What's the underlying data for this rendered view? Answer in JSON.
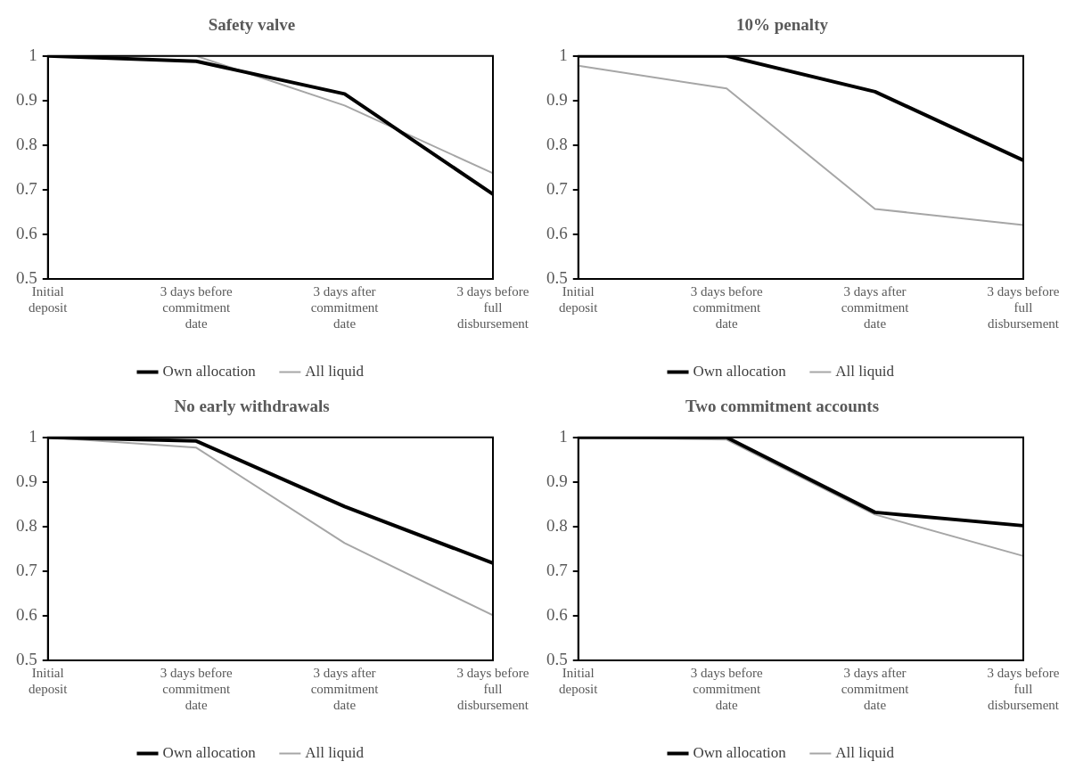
{
  "chart_data": [
    {
      "type": "line",
      "title": "Safety valve",
      "categories": [
        "Initial deposit",
        "3 days before commitment date",
        "3 days after commitment date",
        "3 days before full disbursement"
      ],
      "ylim": [
        0.5,
        1
      ],
      "yticks": [
        0.5,
        0.6,
        0.7,
        0.8,
        0.9,
        1
      ],
      "legend": "bottom",
      "marker": "none",
      "series": [
        {
          "name": "Own allocation",
          "color": "#000000",
          "values": [
            1,
            0.988,
            0.915,
            0.69
          ]
        },
        {
          "name": "All liquid",
          "color": "#a6a6a6",
          "values": [
            1,
            1,
            0.889,
            0.737
          ]
        }
      ]
    },
    {
      "type": "line",
      "title": "10% penalty",
      "categories": [
        "Initial deposit",
        "3 days before commitment date",
        "3 days after commitment date",
        "3 days before full disbursement"
      ],
      "ylim": [
        0.5,
        1
      ],
      "yticks": [
        0.5,
        0.6,
        0.7,
        0.8,
        0.9,
        1
      ],
      "legend": "bottom",
      "marker": "none",
      "series": [
        {
          "name": "Own allocation",
          "color": "#000000",
          "values": [
            1,
            1,
            0.92,
            0.766
          ]
        },
        {
          "name": "All liquid",
          "color": "#a6a6a6",
          "values": [
            0.978,
            0.927,
            0.657,
            0.621
          ]
        }
      ]
    },
    {
      "type": "line",
      "title": "No early withdrawals",
      "categories": [
        "Initial deposit",
        "3 days before commitment date",
        "3 days after commitment date",
        "3 days before full disbursement"
      ],
      "ylim": [
        0.5,
        1
      ],
      "yticks": [
        0.5,
        0.6,
        0.7,
        0.8,
        0.9,
        1
      ],
      "legend": "bottom",
      "marker": "none",
      "series": [
        {
          "name": "Own allocation",
          "color": "#000000",
          "values": [
            1,
            0.992,
            0.845,
            0.718
          ]
        },
        {
          "name": "All liquid",
          "color": "#a6a6a6",
          "values": [
            1,
            0.977,
            0.763,
            0.601
          ]
        }
      ]
    },
    {
      "type": "line",
      "title": "Two commitment accounts",
      "categories": [
        "Initial deposit",
        "3 days before commitment date",
        "3 days after commitment date",
        "3 days before full disbursement"
      ],
      "ylim": [
        0.5,
        1
      ],
      "yticks": [
        0.5,
        0.6,
        0.7,
        0.8,
        0.9,
        1
      ],
      "legend": "bottom",
      "marker": "none",
      "series": [
        {
          "name": "Own allocation",
          "color": "#000000",
          "values": [
            1,
            1,
            0.832,
            0.802
          ]
        },
        {
          "name": "All liquid",
          "color": "#a6a6a6",
          "values": [
            1,
            0.995,
            0.827,
            0.734
          ]
        }
      ]
    }
  ]
}
